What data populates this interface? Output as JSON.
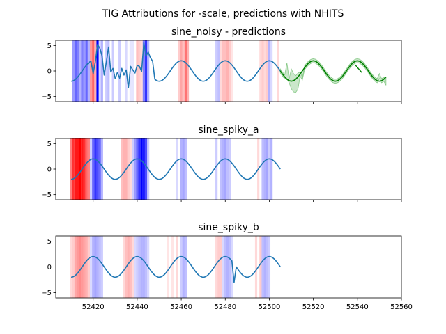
{
  "figure": {
    "suptitle": "TIG Attributions for -scale, predictions with NHITS"
  },
  "colors": {
    "series": "#1f77b4",
    "prediction": "#008000",
    "band": "#2ca02c",
    "positive_attr": "#ff0000",
    "negative_attr": "#0000ff"
  },
  "chart_data": [
    {
      "type": "line",
      "title": "sine_noisy - predictions",
      "xlim": [
        52403,
        52560
      ],
      "ylim": [
        -6,
        6
      ],
      "yticks": [
        -5,
        0,
        5
      ],
      "x_tick_labels": false,
      "series": [
        {
          "kind": "sine",
          "x_start": 52410,
          "x_end": 52505,
          "period": 20,
          "amplitude": 2,
          "phase_x": 52415,
          "overrides": [
            [
              52420,
              -0.5
            ],
            [
              52421,
              1.8
            ],
            [
              52422,
              5.2
            ],
            [
              52423,
              4.5
            ],
            [
              52424,
              3.0
            ],
            [
              52425,
              -0.8
            ],
            [
              52426,
              1.8
            ],
            [
              52427,
              4.7
            ],
            [
              52428,
              -0.2
            ],
            [
              52429,
              0.5
            ],
            [
              52430,
              -1.5
            ],
            [
              52431,
              -0.3
            ],
            [
              52432,
              -1.4
            ],
            [
              52433,
              0.5
            ],
            [
              52434,
              -0.8
            ],
            [
              52435,
              0.2
            ],
            [
              52436,
              -3.3
            ],
            [
              52437,
              0.9
            ],
            [
              52438,
              0.2
            ],
            [
              52439,
              -0.4
            ],
            [
              52440,
              1.1
            ],
            [
              52441,
              0.9
            ],
            [
              52442,
              -0.1
            ],
            [
              52443,
              5.5
            ],
            [
              52444,
              2.9
            ],
            [
              52445,
              3.7
            ],
            [
              52446,
              2.6
            ],
            [
              52447,
              1.9
            ]
          ]
        }
      ],
      "prediction": {
        "x_start": 52505,
        "x_end": 52553,
        "period": 20,
        "amplitude": 2,
        "phase_x": 52515,
        "band_halfwidth": 0.4,
        "band_overrides": [
          [
            52508,
            [
              -1.5,
              1.6
            ]
          ],
          [
            52510,
            [
              -3.5,
              0.4
            ]
          ],
          [
            52511,
            [
              -4.1,
              -0.5
            ]
          ],
          [
            52512,
            [
              -4.2,
              -0.9
            ]
          ],
          [
            52513,
            [
              -3.6,
              -0.4
            ]
          ],
          [
            52515,
            [
              -1.8,
              -1.2
            ]
          ],
          [
            52550,
            [
              -1.5,
              -0.5
            ]
          ],
          [
            52553,
            [
              -2.8,
              -1.3
            ]
          ]
        ],
        "extra_segment": [
          [
            52539,
            1.2
          ],
          [
            52542,
            -0.3
          ]
        ]
      },
      "attributions": [
        [
          52411,
          -0.4
        ],
        [
          52412,
          -0.6
        ],
        [
          52413,
          -0.5
        ],
        [
          52414,
          -0.3
        ],
        [
          52415,
          -0.5
        ],
        [
          52416,
          -0.4
        ],
        [
          52417,
          -0.6
        ],
        [
          52418,
          -0.3
        ],
        [
          52419,
          0.4
        ],
        [
          52420,
          0.6
        ],
        [
          52421,
          0.3
        ],
        [
          52422,
          -1.0
        ],
        [
          52423,
          -0.15
        ],
        [
          52424,
          -0.3
        ],
        [
          52426,
          -0.2
        ],
        [
          52427,
          -0.25
        ],
        [
          52429,
          -0.2
        ],
        [
          52432,
          -0.2
        ],
        [
          52435,
          -0.15
        ],
        [
          52437,
          -0.1
        ],
        [
          52438,
          -0.1
        ],
        [
          52440,
          0.25
        ],
        [
          52441,
          0.2
        ],
        [
          52442,
          0.15
        ],
        [
          52443,
          -0.5
        ],
        [
          52444,
          -0.8
        ],
        [
          52445,
          -0.3
        ],
        [
          52459,
          0.2
        ],
        [
          52460,
          0.35
        ],
        [
          52461,
          0.25
        ],
        [
          52462,
          0.55
        ],
        [
          52463,
          0.3
        ],
        [
          52476,
          -0.2
        ],
        [
          52477,
          -0.25
        ],
        [
          52478,
          0.15
        ],
        [
          52479,
          0.25
        ],
        [
          52480,
          0.25
        ],
        [
          52481,
          0.3
        ],
        [
          52482,
          0.2
        ],
        [
          52483,
          0.1
        ],
        [
          52496,
          0.15
        ],
        [
          52497,
          0.2
        ],
        [
          52498,
          0.15
        ],
        [
          52499,
          0.2
        ],
        [
          52500,
          -0.3
        ],
        [
          52501,
          -0.15
        ],
        [
          52504,
          0.15
        ]
      ]
    },
    {
      "type": "line",
      "title": "sine_spiky_a",
      "xlim": [
        52403,
        52560
      ],
      "ylim": [
        -6,
        6
      ],
      "yticks": [
        -5,
        0,
        5
      ],
      "x_tick_labels": false,
      "series": [
        {
          "kind": "sine",
          "x_start": 52410,
          "x_end": 52505,
          "period": 20,
          "amplitude": 2,
          "phase_x": 52415,
          "overrides": []
        }
      ],
      "attributions": [
        [
          52410,
          0.5
        ],
        [
          52411,
          0.8
        ],
        [
          52412,
          0.9
        ],
        [
          52413,
          0.9
        ],
        [
          52414,
          1.0
        ],
        [
          52415,
          0.9
        ],
        [
          52416,
          0.8
        ],
        [
          52417,
          0.6
        ],
        [
          52418,
          0.5
        ],
        [
          52419,
          -0.2
        ],
        [
          52420,
          -0.6
        ],
        [
          52421,
          -0.8
        ],
        [
          52422,
          -0.7
        ],
        [
          52423,
          -0.6
        ],
        [
          52424,
          -0.3
        ],
        [
          52433,
          0.25
        ],
        [
          52434,
          0.3
        ],
        [
          52435,
          0.3
        ],
        [
          52436,
          0.2
        ],
        [
          52437,
          0.15
        ],
        [
          52438,
          -0.2
        ],
        [
          52439,
          -0.4
        ],
        [
          52440,
          -0.6
        ],
        [
          52441,
          -0.8
        ],
        [
          52442,
          -1.0
        ],
        [
          52443,
          -0.9
        ],
        [
          52444,
          -0.7
        ],
        [
          52445,
          -0.2
        ],
        [
          52458,
          -0.15
        ],
        [
          52460,
          -0.3
        ],
        [
          52461,
          -0.35
        ],
        [
          52462,
          -0.25
        ],
        [
          52476,
          -0.2
        ],
        [
          52478,
          -0.25
        ],
        [
          52479,
          -0.3
        ],
        [
          52480,
          -0.35
        ],
        [
          52481,
          -0.25
        ],
        [
          52482,
          -0.2
        ],
        [
          52495,
          0.15
        ],
        [
          52497,
          -0.25
        ],
        [
          52498,
          -0.3
        ],
        [
          52499,
          -0.35
        ],
        [
          52500,
          -0.2
        ],
        [
          52501,
          -0.3
        ]
      ]
    },
    {
      "type": "line",
      "title": "sine_spiky_b",
      "xlim": [
        52403,
        52560
      ],
      "ylim": [
        -6,
        6
      ],
      "yticks": [
        -5,
        0,
        5
      ],
      "x_tick_labels": true,
      "xticks": [
        52420,
        52440,
        52460,
        52480,
        52500,
        52520,
        52540,
        52560
      ],
      "series": [
        {
          "kind": "sine",
          "x_start": 52410,
          "x_end": 52505,
          "period": 20,
          "amplitude": 2,
          "phase_x": 52415,
          "overrides": [
            [
              52484,
              -3.0
            ]
          ]
        }
      ],
      "attributions": [
        [
          52410,
          0.15
        ],
        [
          52411,
          0.2
        ],
        [
          52412,
          0.35
        ],
        [
          52413,
          0.4
        ],
        [
          52414,
          0.45
        ],
        [
          52415,
          0.4
        ],
        [
          52416,
          0.35
        ],
        [
          52417,
          0.3
        ],
        [
          52418,
          0.2
        ],
        [
          52419,
          -0.15
        ],
        [
          52420,
          -0.3
        ],
        [
          52421,
          -0.35
        ],
        [
          52422,
          -0.3
        ],
        [
          52423,
          -0.25
        ],
        [
          52424,
          -0.2
        ],
        [
          52434,
          0.15
        ],
        [
          52435,
          0.25
        ],
        [
          52436,
          0.3
        ],
        [
          52437,
          0.25
        ],
        [
          52438,
          0.15
        ],
        [
          52439,
          -0.15
        ],
        [
          52440,
          -0.2
        ],
        [
          52441,
          -0.25
        ],
        [
          52442,
          -0.3
        ],
        [
          52443,
          -0.3
        ],
        [
          52444,
          -0.25
        ],
        [
          52445,
          -0.15
        ],
        [
          52454,
          0.1
        ],
        [
          52456,
          0.1
        ],
        [
          52458,
          0.15
        ],
        [
          52460,
          -0.2
        ],
        [
          52461,
          -0.3
        ],
        [
          52462,
          -0.25
        ],
        [
          52476,
          0.15
        ],
        [
          52477,
          0.2
        ],
        [
          52478,
          0.2
        ],
        [
          52479,
          -0.15
        ],
        [
          52480,
          -0.25
        ],
        [
          52481,
          -0.3
        ],
        [
          52482,
          -0.25
        ],
        [
          52483,
          -0.15
        ],
        [
          52494,
          0.15
        ],
        [
          52496,
          0.2
        ],
        [
          52497,
          -0.25
        ],
        [
          52498,
          -0.3
        ],
        [
          52499,
          -0.25
        ],
        [
          52500,
          -0.2
        ]
      ]
    }
  ]
}
